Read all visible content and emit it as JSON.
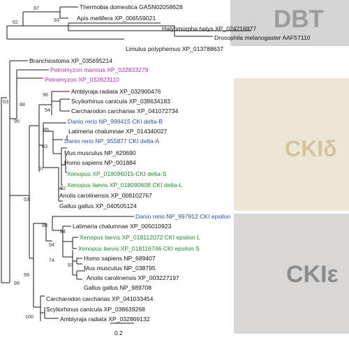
{
  "colors": {
    "black": "#111111",
    "magenta": "#b02fb0",
    "blue": "#2a4fb0",
    "green": "#1f8f2a",
    "band_dbt": "#d4d4d4",
    "band_cki_delta": "#eee7d6",
    "band_cki_epsilon": "#d9d6d6",
    "label_dbt": "#9b9b9b",
    "label_cki_delta": "#d2c49e",
    "label_cki_epsilon": "#8c8c8c"
  },
  "groups": {
    "dbt": "DBT",
    "cki_delta": "CKIδ",
    "cki_epsilon": "CKIε"
  },
  "scale_bar": {
    "label": "0.2"
  },
  "leaves": {
    "thermobia": "Thermobia domestica GASN02058628",
    "apis": "Apis mellifera XP_006559021",
    "halyomorpha": "Halyomorpha halys XP_024216977",
    "drosophila": "Drosophila melanogaster AAF57110",
    "limulus": "Limulus polyphemus XP_013788637",
    "branchiostoma": "Branchiostoma XP_035695214",
    "petromyzon_1": "Petromyzon marinus XP_032833279",
    "petromyzon_2": "Petromyzon XP_032823110",
    "amblyraja_d": "Amblyraja radiata XP_032900476",
    "scyliorhinus_d": "Scyliorhinus canicula XP_038634183",
    "carcharodon_d": "Carcharodon carcharias XP_041072734",
    "danio_d_b": "Danio rerio NP_998415 CKI delta-B",
    "latimeria_d": "Latimeria chalumnae XP_014340027",
    "danio_d_a": "Danio rerio NP_955877 CKI delta-A",
    "mus_d": "Mus musculus NP_620690",
    "homo_d": "Homo sapiens NP_001884",
    "xenopus_d_s": "Xenopus XP_018096015-CKI delta-S",
    "xenopus_d_l": "Xenopus laevis XP_018090608 CKI delta-L",
    "anolis_d": "Anolis carolinensis XP_008102767",
    "gallus_d": "Gallus gallus XP_040505124",
    "danio_e": "Danio rerio NP_997912 CKI epsilon",
    "latimeria_e": "Latimeria chalumnae XP_005010923",
    "xenopus_e_l": "Xenopus laevis  XP_018112072 CKI epsilon L",
    "xenopus_e_s": "Xenopus laevis  XP_018116746 CKI epsilon S",
    "homo_e": "Homo sapiens NP_689407",
    "mus_e": "Mus musculus NP_038795",
    "anolis_e": "Anolis carolinensis XP_003227197",
    "gallus_e": "Gallus gallus NP_989708",
    "carcharodon_e": "Carcharodon carcharias XP_041033454",
    "scyliorhinus_e": "Scyliorhinus canicula XP_038639268",
    "amblyraja_e": "Amblyraja radiata XP_032869132"
  },
  "bootstrap": {
    "b97": "97",
    "b93": "93",
    "b62": "62",
    "b63": "63",
    "b88": "88",
    "b95": "95",
    "b96": "96",
    "b54": "54",
    "b85": "85",
    "b63b": "63",
    "b97b": "97",
    "b92": "92",
    "b53": "53",
    "b98": "98",
    "b84": "84",
    "b94": "94",
    "b74": "74",
    "b97c": "97",
    "b99a": "99",
    "b99b": "99",
    "b100": "100"
  }
}
